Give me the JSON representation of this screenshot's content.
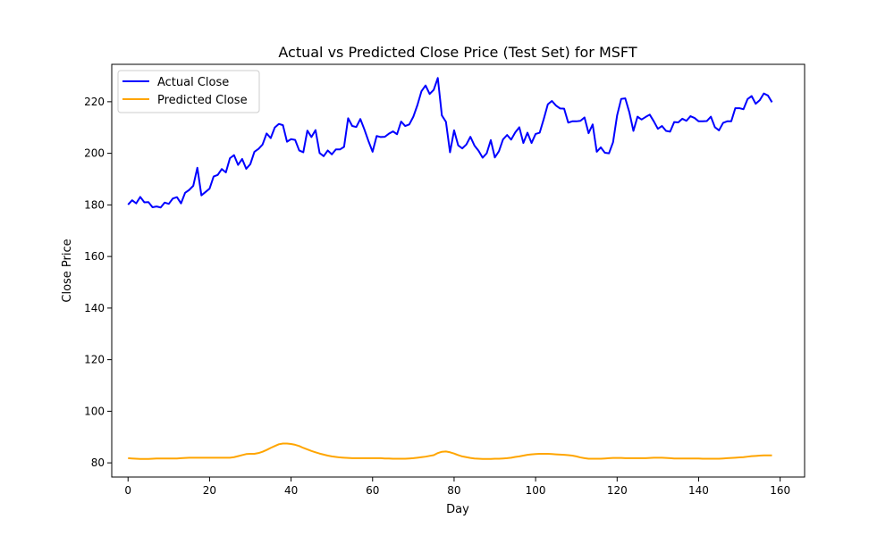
{
  "chart_data": {
    "type": "line",
    "title": "Actual vs Predicted Close Price (Test Set) for MSFT",
    "xlabel": "Day",
    "ylabel": "Close Price",
    "xlim": [
      -4,
      166
    ],
    "ylim": [
      74.5,
      234.5
    ],
    "xticks": [
      0,
      20,
      40,
      60,
      80,
      100,
      120,
      140,
      160
    ],
    "yticks": [
      80,
      100,
      120,
      140,
      160,
      180,
      200,
      220
    ],
    "grid": false,
    "legend": "top-left",
    "series": [
      {
        "name": "Actual Close",
        "color": "#0000ff",
        "values": [
          180.1,
          181.8,
          180.6,
          183.1,
          181.0,
          181.1,
          179.1,
          179.4,
          179.0,
          180.9,
          180.4,
          182.5,
          183.0,
          180.6,
          184.7,
          185.8,
          187.4,
          194.4,
          183.7,
          185.0,
          186.3,
          191.0,
          191.6,
          193.9,
          192.6,
          198.1,
          199.3,
          195.5,
          197.8,
          194.0,
          195.8,
          200.6,
          201.7,
          203.4,
          207.7,
          205.9,
          210.0,
          211.4,
          210.9,
          204.5,
          205.5,
          205.2,
          201.1,
          200.4,
          208.8,
          206.3,
          209.0,
          200.1,
          198.9,
          201.1,
          199.6,
          201.5,
          201.5,
          202.5,
          213.6,
          210.6,
          210.2,
          213.3,
          209.2,
          204.7,
          200.6,
          206.7,
          206.3,
          206.4,
          207.6,
          208.5,
          207.4,
          212.3,
          210.6,
          211.2,
          214.2,
          218.7,
          224.1,
          226.3,
          223.0,
          224.6,
          229.2,
          214.7,
          212.2,
          200.4,
          208.9,
          203.1,
          201.9,
          203.4,
          206.4,
          203.0,
          201.0,
          198.3,
          200.0,
          205.1,
          198.4,
          200.8,
          205.4,
          207.1,
          205.3,
          208.1,
          210.1,
          204.0,
          208.0,
          204.0,
          207.5,
          208.0,
          213.3,
          219.0,
          220.3,
          218.5,
          217.4,
          217.3,
          211.9,
          212.4,
          212.4,
          212.6,
          213.9,
          207.8,
          211.2,
          200.6,
          202.3,
          200.2,
          200.0,
          204.3,
          214.7,
          221.1,
          221.3,
          215.9,
          208.7,
          214.2,
          213.1,
          214.1,
          215.0,
          212.4,
          209.5,
          210.6,
          208.7,
          208.4,
          212.1,
          212.0,
          213.4,
          212.6,
          214.4,
          213.7,
          212.4,
          212.4,
          212.5,
          214.2,
          210.1,
          208.9,
          211.8,
          212.4,
          212.4,
          217.5,
          217.5,
          217.1,
          221.0,
          222.2,
          219.2,
          220.6,
          223.2,
          222.4,
          219.8
        ]
      },
      {
        "name": "Predicted Close",
        "color": "#ffa500",
        "values": [
          81.8,
          81.7,
          81.6,
          81.5,
          81.5,
          81.5,
          81.6,
          81.7,
          81.7,
          81.7,
          81.7,
          81.7,
          81.7,
          81.8,
          81.9,
          82.0,
          82.0,
          82.0,
          82.0,
          82.0,
          82.0,
          82.0,
          82.0,
          82.0,
          82.0,
          82.0,
          82.2,
          82.6,
          83.0,
          83.4,
          83.5,
          83.5,
          83.8,
          84.3,
          85.0,
          85.8,
          86.5,
          87.2,
          87.5,
          87.5,
          87.3,
          87.0,
          86.5,
          85.8,
          85.2,
          84.6,
          84.1,
          83.6,
          83.2,
          82.8,
          82.5,
          82.3,
          82.1,
          82.0,
          81.9,
          81.8,
          81.8,
          81.8,
          81.8,
          81.8,
          81.8,
          81.8,
          81.8,
          81.7,
          81.7,
          81.6,
          81.6,
          81.6,
          81.6,
          81.7,
          81.8,
          82.0,
          82.2,
          82.4,
          82.7,
          83.0,
          83.8,
          84.3,
          84.4,
          84.1,
          83.6,
          83.0,
          82.5,
          82.2,
          81.9,
          81.7,
          81.6,
          81.5,
          81.5,
          81.5,
          81.6,
          81.6,
          81.7,
          81.8,
          82.0,
          82.3,
          82.5,
          82.8,
          83.1,
          83.3,
          83.4,
          83.5,
          83.5,
          83.5,
          83.4,
          83.3,
          83.2,
          83.1,
          83.0,
          82.8,
          82.5,
          82.1,
          81.8,
          81.6,
          81.6,
          81.6,
          81.6,
          81.7,
          81.8,
          81.9,
          81.9,
          81.9,
          81.8,
          81.8,
          81.8,
          81.8,
          81.8,
          81.8,
          81.9,
          82.0,
          82.0,
          82.0,
          81.9,
          81.8,
          81.7,
          81.7,
          81.7,
          81.7,
          81.7,
          81.7,
          81.7,
          81.6,
          81.6,
          81.6,
          81.6,
          81.6,
          81.7,
          81.8,
          81.9,
          82.0,
          82.1,
          82.2,
          82.4,
          82.6,
          82.7,
          82.8,
          82.9,
          82.9,
          82.9
        ]
      }
    ]
  }
}
